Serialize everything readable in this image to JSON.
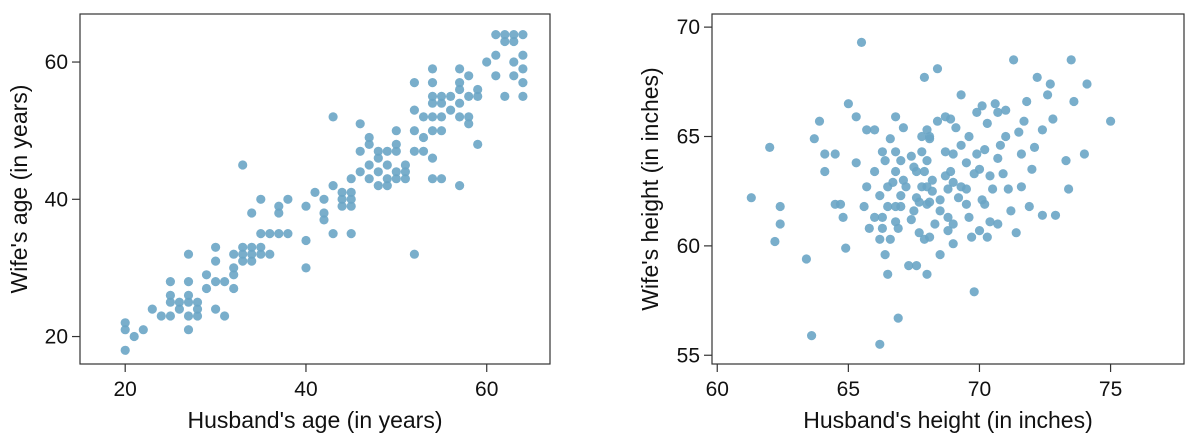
{
  "point_color": "#6aa5c5",
  "chart_data": [
    {
      "type": "scatter",
      "xlabel": "Husband's age (in years)",
      "ylabel": "Wife's age (in years)",
      "xlim": [
        15,
        67
      ],
      "ylim": [
        16,
        67
      ],
      "xticks": [
        20,
        40,
        60
      ],
      "yticks": [
        20,
        40,
        60
      ],
      "grid": false,
      "points": [
        [
          20,
          18
        ],
        [
          20,
          21
        ],
        [
          20,
          22
        ],
        [
          21,
          20
        ],
        [
          22,
          21
        ],
        [
          23,
          24
        ],
        [
          24,
          23
        ],
        [
          25,
          23
        ],
        [
          25,
          25
        ],
        [
          25,
          26
        ],
        [
          25,
          28
        ],
        [
          26,
          24
        ],
        [
          26,
          25
        ],
        [
          27,
          21
        ],
        [
          27,
          23
        ],
        [
          27,
          25
        ],
        [
          27,
          26
        ],
        [
          27,
          28
        ],
        [
          27,
          32
        ],
        [
          28,
          23
        ],
        [
          28,
          24
        ],
        [
          28,
          25
        ],
        [
          29,
          27
        ],
        [
          29,
          29
        ],
        [
          30,
          24
        ],
        [
          30,
          28
        ],
        [
          30,
          31
        ],
        [
          30,
          33
        ],
        [
          31,
          23
        ],
        [
          31,
          28
        ],
        [
          32,
          27
        ],
        [
          32,
          29
        ],
        [
          32,
          30
        ],
        [
          32,
          32
        ],
        [
          33,
          31
        ],
        [
          33,
          32
        ],
        [
          33,
          33
        ],
        [
          33,
          45
        ],
        [
          34,
          31
        ],
        [
          34,
          32
        ],
        [
          34,
          33
        ],
        [
          34,
          38
        ],
        [
          35,
          32
        ],
        [
          35,
          33
        ],
        [
          35,
          35
        ],
        [
          35,
          40
        ],
        [
          36,
          32
        ],
        [
          36,
          35
        ],
        [
          37,
          35
        ],
        [
          37,
          38
        ],
        [
          37,
          39
        ],
        [
          38,
          35
        ],
        [
          38,
          40
        ],
        [
          40,
          30
        ],
        [
          40,
          34
        ],
        [
          40,
          39
        ],
        [
          41,
          41
        ],
        [
          42,
          37
        ],
        [
          42,
          38
        ],
        [
          42,
          40
        ],
        [
          43,
          35
        ],
        [
          43,
          42
        ],
        [
          43,
          52
        ],
        [
          44,
          39
        ],
        [
          44,
          40
        ],
        [
          44,
          41
        ],
        [
          45,
          35
        ],
        [
          45,
          39
        ],
        [
          45,
          40
        ],
        [
          45,
          41
        ],
        [
          45,
          43
        ],
        [
          46,
          44
        ],
        [
          46,
          47
        ],
        [
          46,
          51
        ],
        [
          47,
          43
        ],
        [
          47,
          45
        ],
        [
          47,
          48
        ],
        [
          47,
          49
        ],
        [
          48,
          42
        ],
        [
          48,
          44
        ],
        [
          48,
          46
        ],
        [
          48,
          47
        ],
        [
          49,
          42
        ],
        [
          49,
          43
        ],
        [
          49,
          45
        ],
        [
          49,
          47
        ],
        [
          50,
          43
        ],
        [
          50,
          44
        ],
        [
          50,
          47
        ],
        [
          50,
          48
        ],
        [
          50,
          50
        ],
        [
          51,
          43
        ],
        [
          51,
          44
        ],
        [
          51,
          45
        ],
        [
          52,
          32
        ],
        [
          52,
          47
        ],
        [
          52,
          50
        ],
        [
          52,
          53
        ],
        [
          52,
          57
        ],
        [
          53,
          47
        ],
        [
          53,
          49
        ],
        [
          53,
          52
        ],
        [
          54,
          43
        ],
        [
          54,
          46
        ],
        [
          54,
          50
        ],
        [
          54,
          52
        ],
        [
          54,
          54
        ],
        [
          54,
          55
        ],
        [
          54,
          57
        ],
        [
          54,
          59
        ],
        [
          55,
          43
        ],
        [
          55,
          50
        ],
        [
          55,
          52
        ],
        [
          55,
          54
        ],
        [
          55,
          55
        ],
        [
          56,
          53
        ],
        [
          56,
          55
        ],
        [
          57,
          42
        ],
        [
          57,
          52
        ],
        [
          57,
          54
        ],
        [
          57,
          56
        ],
        [
          57,
          57
        ],
        [
          57,
          59
        ],
        [
          58,
          51
        ],
        [
          58,
          52
        ],
        [
          58,
          55
        ],
        [
          58,
          58
        ],
        [
          59,
          48
        ],
        [
          59,
          55
        ],
        [
          59,
          56
        ],
        [
          60,
          60
        ],
        [
          61,
          58
        ],
        [
          61,
          61
        ],
        [
          61,
          64
        ],
        [
          62,
          55
        ],
        [
          62,
          63
        ],
        [
          62,
          64
        ],
        [
          63,
          58
        ],
        [
          63,
          60
        ],
        [
          63,
          63
        ],
        [
          63,
          64
        ],
        [
          64,
          55
        ],
        [
          64,
          57
        ],
        [
          64,
          59
        ],
        [
          64,
          61
        ],
        [
          64,
          64
        ]
      ]
    },
    {
      "type": "scatter",
      "xlabel": "Husband's height (in inches)",
      "ylabel": "Wife's height (in inches)",
      "xlim": [
        59.8,
        77.8
      ],
      "ylim": [
        54.6,
        70.6
      ],
      "xticks": [
        60,
        65,
        70,
        75
      ],
      "yticks": [
        55,
        60,
        65,
        70
      ],
      "grid": false,
      "points": [
        [
          61.3,
          62.2
        ],
        [
          62.0,
          64.5
        ],
        [
          62.2,
          60.2
        ],
        [
          62.4,
          61.8
        ],
        [
          62.4,
          61.0
        ],
        [
          63.4,
          59.4
        ],
        [
          63.6,
          55.9
        ],
        [
          63.7,
          64.9
        ],
        [
          63.9,
          65.7
        ],
        [
          64.1,
          64.2
        ],
        [
          64.1,
          63.4
        ],
        [
          64.5,
          61.9
        ],
        [
          64.5,
          64.2
        ],
        [
          64.7,
          61.9
        ],
        [
          64.9,
          59.9
        ],
        [
          64.8,
          61.3
        ],
        [
          65.0,
          66.5
        ],
        [
          65.3,
          65.9
        ],
        [
          65.3,
          63.8
        ],
        [
          65.5,
          69.3
        ],
        [
          65.6,
          61.8
        ],
        [
          65.7,
          62.7
        ],
        [
          65.7,
          65.3
        ],
        [
          65.8,
          60.8
        ],
        [
          66.0,
          65.3
        ],
        [
          66.0,
          61.3
        ],
        [
          66.0,
          63.4
        ],
        [
          66.2,
          55.5
        ],
        [
          66.2,
          60.3
        ],
        [
          66.2,
          62.3
        ],
        [
          66.3,
          61.3
        ],
        [
          66.3,
          64.3
        ],
        [
          66.3,
          60.8
        ],
        [
          66.4,
          59.6
        ],
        [
          66.4,
          63.9
        ],
        [
          66.5,
          58.7
        ],
        [
          66.5,
          62.7
        ],
        [
          66.5,
          61.8
        ],
        [
          66.6,
          64.9
        ],
        [
          66.6,
          60.3
        ],
        [
          66.7,
          62.9
        ],
        [
          66.8,
          64.3
        ],
        [
          66.8,
          61.1
        ],
        [
          66.8,
          61.8
        ],
        [
          66.8,
          63.4
        ],
        [
          66.8,
          65.9
        ],
        [
          66.9,
          60.8
        ],
        [
          66.9,
          56.7
        ],
        [
          67.0,
          63.9
        ],
        [
          67.0,
          61.8
        ],
        [
          67.0,
          62.3
        ],
        [
          67.1,
          63.0
        ],
        [
          67.1,
          65.4
        ],
        [
          67.2,
          62.7
        ],
        [
          67.3,
          59.1
        ],
        [
          67.4,
          61.2
        ],
        [
          67.4,
          64.1
        ],
        [
          67.5,
          63.6
        ],
        [
          67.5,
          61.6
        ],
        [
          67.6,
          59.1
        ],
        [
          67.6,
          62.2
        ],
        [
          67.6,
          63.4
        ],
        [
          67.7,
          60.6
        ],
        [
          67.7,
          62.0
        ],
        [
          67.8,
          64.3
        ],
        [
          67.8,
          65.0
        ],
        [
          67.8,
          62.7
        ],
        [
          67.9,
          60.3
        ],
        [
          67.9,
          63.4
        ],
        [
          67.9,
          67.7
        ],
        [
          68.0,
          58.7
        ],
        [
          68.0,
          63.9
        ],
        [
          68.0,
          65.3
        ],
        [
          68.0,
          62.7
        ],
        [
          68.0,
          61.9
        ],
        [
          68.1,
          60.4
        ],
        [
          68.1,
          64.9
        ],
        [
          68.1,
          62.0
        ],
        [
          68.1,
          65.0
        ],
        [
          68.2,
          63.0
        ],
        [
          68.2,
          62.5
        ],
        [
          68.3,
          61.0
        ],
        [
          68.4,
          68.1
        ],
        [
          68.4,
          65.7
        ],
        [
          68.5,
          62.1
        ],
        [
          68.5,
          61.6
        ],
        [
          68.5,
          59.6
        ],
        [
          68.7,
          64.3
        ],
        [
          68.7,
          63.2
        ],
        [
          68.7,
          65.9
        ],
        [
          68.8,
          60.7
        ],
        [
          68.8,
          62.6
        ],
        [
          68.8,
          61.3
        ],
        [
          68.9,
          63.4
        ],
        [
          68.9,
          65.8
        ],
        [
          69.0,
          64.2
        ],
        [
          69.0,
          60.1
        ],
        [
          69.0,
          62.9
        ],
        [
          69.0,
          61.0
        ],
        [
          69.1,
          65.4
        ],
        [
          69.2,
          62.2
        ],
        [
          69.3,
          64.6
        ],
        [
          69.3,
          62.7
        ],
        [
          69.3,
          66.9
        ],
        [
          69.5,
          63.8
        ],
        [
          69.5,
          62.6
        ],
        [
          69.5,
          61.9
        ],
        [
          69.6,
          65.0
        ],
        [
          69.6,
          61.3
        ],
        [
          69.7,
          60.4
        ],
        [
          69.8,
          57.9
        ],
        [
          69.8,
          63.3
        ],
        [
          69.9,
          66.1
        ],
        [
          69.9,
          64.2
        ],
        [
          70.0,
          60.7
        ],
        [
          70.0,
          63.5
        ],
        [
          70.1,
          62.1
        ],
        [
          70.1,
          66.4
        ],
        [
          70.2,
          64.4
        ],
        [
          70.2,
          61.9
        ],
        [
          70.3,
          65.6
        ],
        [
          70.3,
          60.4
        ],
        [
          70.4,
          63.2
        ],
        [
          70.4,
          61.1
        ],
        [
          70.5,
          62.6
        ],
        [
          70.6,
          66.5
        ],
        [
          70.7,
          66.1
        ],
        [
          70.7,
          64.0
        ],
        [
          70.7,
          61.0
        ],
        [
          70.8,
          64.6
        ],
        [
          70.9,
          63.3
        ],
        [
          71.0,
          65.0
        ],
        [
          71.0,
          66.2
        ],
        [
          71.1,
          62.6
        ],
        [
          71.2,
          61.6
        ],
        [
          71.3,
          68.5
        ],
        [
          71.4,
          60.6
        ],
        [
          71.5,
          65.2
        ],
        [
          71.6,
          64.2
        ],
        [
          71.6,
          62.7
        ],
        [
          71.7,
          65.7
        ],
        [
          71.8,
          66.6
        ],
        [
          71.9,
          61.8
        ],
        [
          72.0,
          63.5
        ],
        [
          72.1,
          64.5
        ],
        [
          72.2,
          67.7
        ],
        [
          72.4,
          65.3
        ],
        [
          72.4,
          61.4
        ],
        [
          72.6,
          66.9
        ],
        [
          72.7,
          67.4
        ],
        [
          72.8,
          65.8
        ],
        [
          72.9,
          61.4
        ],
        [
          73.3,
          63.9
        ],
        [
          73.4,
          62.6
        ],
        [
          73.5,
          68.5
        ],
        [
          73.6,
          66.6
        ],
        [
          74.0,
          64.2
        ],
        [
          74.1,
          67.4
        ],
        [
          75.0,
          65.7
        ]
      ]
    }
  ]
}
